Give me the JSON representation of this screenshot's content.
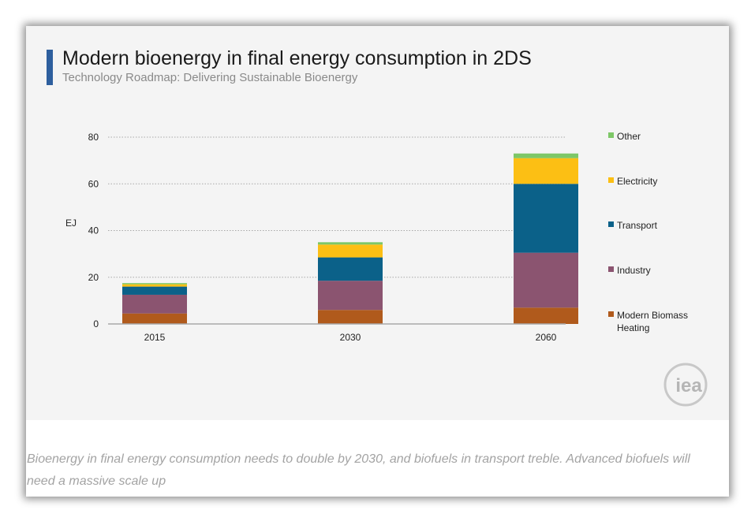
{
  "header": {
    "title": "Modern bioenergy in final energy consumption in 2DS",
    "subtitle": "Technology Roadmap: Delivering Sustainable Bioenergy"
  },
  "caption": "Bioenergy in final energy consumption needs to double by 2030, and biofuels in transport treble. Advanced biofuels will need a massive scale up",
  "logo": {
    "text": "iea",
    "icon": "iea-logo"
  },
  "chart_data": {
    "type": "bar",
    "stacked": true,
    "categories": [
      "2015",
      "2030",
      "2060"
    ],
    "ylabel": "EJ",
    "ylim": [
      0,
      80
    ],
    "yticks": [
      0,
      20,
      40,
      60,
      80
    ],
    "grid": true,
    "legend_position": "right",
    "series": [
      {
        "name": "Modern Biomass Heating",
        "legend_lines": [
          "Modern  Biomass",
          "Heating"
        ],
        "color": "#b05a1c",
        "values": [
          4.5,
          6.0,
          7.0
        ]
      },
      {
        "name": "Industry",
        "legend_lines": [
          "Industry"
        ],
        "color": "#8b5470",
        "values": [
          8.0,
          12.5,
          23.5
        ]
      },
      {
        "name": "Transport",
        "legend_lines": [
          "Transport"
        ],
        "color": "#0b6189",
        "values": [
          3.5,
          10.0,
          29.5
        ]
      },
      {
        "name": "Electricity",
        "legend_lines": [
          "Electricity"
        ],
        "color": "#fcbf14",
        "values": [
          1.0,
          5.5,
          11.0
        ]
      },
      {
        "name": "Other",
        "legend_lines": [
          "Other"
        ],
        "color": "#7dc767",
        "values": [
          0.5,
          1.0,
          2.0
        ]
      }
    ]
  }
}
